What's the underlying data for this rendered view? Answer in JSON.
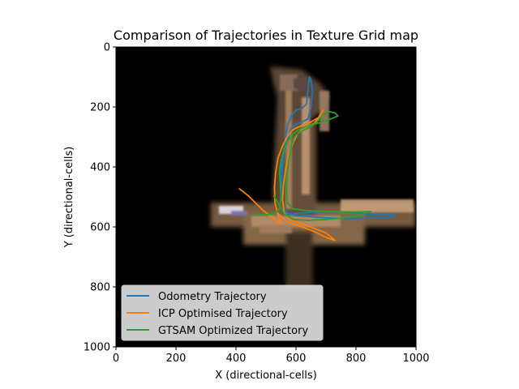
{
  "chart_data": {
    "type": "line",
    "title": "Comparison of Trajectories in Texture Grid map",
    "xlabel": "X (directional-cells)",
    "ylabel": "Y (directional-cells)",
    "xlim": [
      0,
      1000
    ],
    "ylim": [
      1000,
      0
    ],
    "y_inverted": true,
    "xticks": [
      "0",
      "200",
      "400",
      "600",
      "800",
      "1000"
    ],
    "yticks": [
      "0",
      "200",
      "400",
      "600",
      "800",
      "1000"
    ],
    "background": "grid map image (dark, textured)",
    "grid": false,
    "legend_position": "lower-left",
    "series": [
      {
        "name": "Odometry Trajectory",
        "color": "#1f77b4",
        "x": [
          930,
          880,
          820,
          760,
          700,
          640,
          600,
          575,
          560,
          555,
          550,
          548,
          552,
          560,
          568,
          575,
          580,
          590,
          605,
          620,
          640,
          650,
          655,
          650,
          645,
          640,
          635,
          620,
          600,
          585,
          572,
          565,
          560,
          555,
          553,
          552,
          560,
          575,
          600,
          640,
          700,
          770,
          840,
          900,
          925
        ],
        "y": [
          560,
          560,
          555,
          550,
          550,
          552,
          555,
          560,
          540,
          510,
          470,
          430,
          390,
          350,
          320,
          300,
          280,
          265,
          255,
          250,
          240,
          200,
          150,
          110,
          100,
          140,
          190,
          205,
          210,
          230,
          260,
          300,
          350,
          400,
          450,
          500,
          540,
          555,
          562,
          565,
          570,
          572,
          572,
          570,
          565
        ]
      },
      {
        "name": "ICP Optimised Trajectory",
        "color": "#ff7f0e",
        "x": [
          410,
          440,
          465,
          490,
          510,
          530,
          550,
          540,
          530,
          528,
          532,
          540,
          555,
          570,
          585,
          600,
          620,
          650,
          675,
          690,
          680,
          660,
          640,
          620,
          605,
          590,
          575,
          565,
          558,
          555,
          560,
          580,
          620,
          660,
          700,
          730,
          700,
          660,
          620,
          590,
          570,
          555,
          545,
          540
        ],
        "y": [
          472,
          495,
          520,
          545,
          560,
          575,
          590,
          560,
          520,
          470,
          420,
          370,
          330,
          300,
          280,
          270,
          262,
          250,
          235,
          210,
          230,
          255,
          265,
          275,
          290,
          320,
          360,
          410,
          460,
          510,
          550,
          575,
          590,
          605,
          620,
          645,
          635,
          615,
          600,
          590,
          580,
          570,
          560,
          555
        ]
      },
      {
        "name": "GTSAM Optimized Trajectory",
        "color": "#2ca02c",
        "x": [
          460,
          500,
          530,
          545,
          550,
          548,
          545,
          550,
          560,
          575,
          590,
          610,
          635,
          660,
          680,
          700,
          720,
          740,
          730,
          710,
          690,
          670,
          650,
          630,
          610,
          595,
          585,
          575,
          570,
          568,
          572,
          590,
          630,
          690,
          760,
          820,
          850,
          820,
          760,
          700,
          640,
          590,
          560,
          540,
          525
        ],
        "y": [
          562,
          560,
          556,
          540,
          500,
          460,
          420,
          380,
          340,
          310,
          290,
          275,
          265,
          258,
          252,
          245,
          238,
          230,
          220,
          215,
          225,
          250,
          265,
          275,
          285,
          300,
          330,
          380,
          430,
          480,
          520,
          540,
          545,
          548,
          550,
          550,
          548,
          560,
          570,
          575,
          578,
          575,
          555,
          520,
          495
        ]
      }
    ]
  }
}
